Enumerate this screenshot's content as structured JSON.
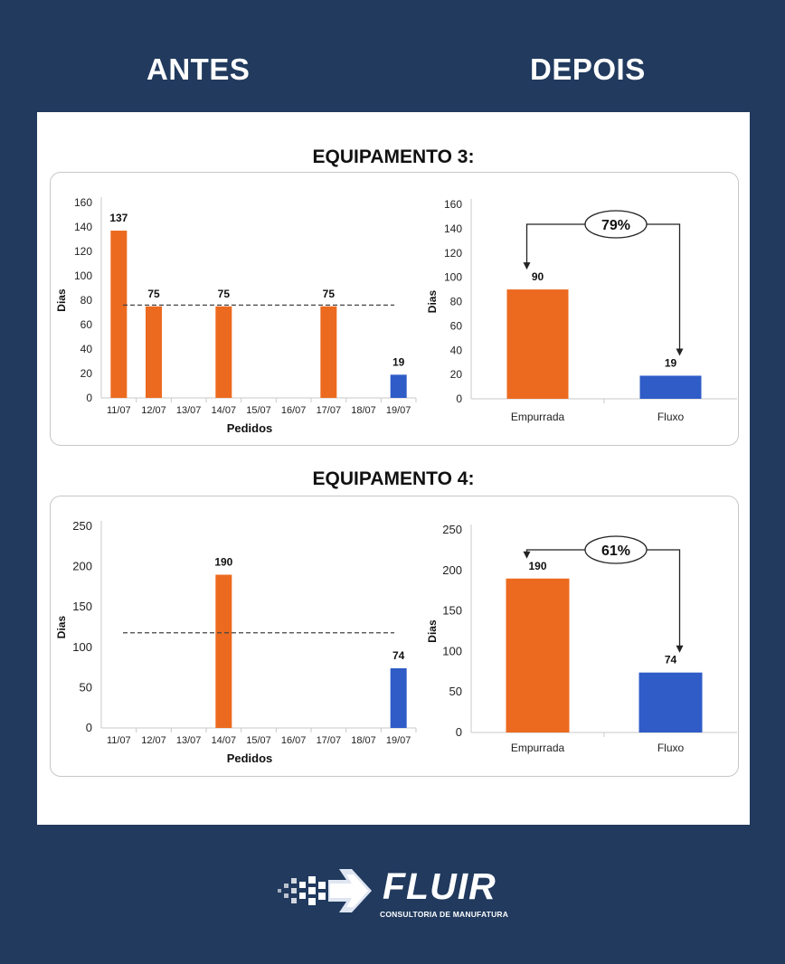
{
  "headings": {
    "before": "ANTES",
    "after": "DEPOIS"
  },
  "sections": [
    {
      "title": "EQUIPAMENTO 3:"
    },
    {
      "title": "EQUIPAMENTO 4:"
    }
  ],
  "colors": {
    "background": "#213a5e",
    "orange": "#ec6a1f",
    "blue": "#2f5cc7"
  },
  "logo": {
    "name": "FLUIR",
    "subtitle": "CONSULTORIA DE MANUFATURA"
  },
  "chart_data": [
    {
      "id": "eq3-before",
      "type": "bar",
      "categories": [
        "11/07",
        "12/07",
        "13/07",
        "14/07",
        "15/07",
        "16/07",
        "17/07",
        "18/07",
        "19/07"
      ],
      "values": [
        137,
        75,
        null,
        75,
        null,
        null,
        75,
        null,
        19
      ],
      "bar_colors": [
        "orange",
        "orange",
        null,
        "orange",
        null,
        null,
        "orange",
        null,
        "blue"
      ],
      "data_labels": [
        "137",
        "75",
        "",
        "75",
        "",
        "",
        "75",
        "",
        "19"
      ],
      "xlabel": "Pedidos",
      "ylabel": "Dias",
      "ylim": [
        0,
        160
      ],
      "yticks": [
        0,
        20,
        40,
        60,
        80,
        100,
        120,
        140,
        160
      ],
      "reference_line": 76,
      "grid": false
    },
    {
      "id": "eq3-after",
      "type": "bar",
      "categories": [
        "Empurrada",
        "Fluxo"
      ],
      "values": [
        90,
        19
      ],
      "bar_colors": [
        "orange",
        "blue"
      ],
      "data_labels": [
        "90",
        "19"
      ],
      "ylabel": "Dias",
      "ylim": [
        0,
        160
      ],
      "yticks": [
        0,
        20,
        40,
        60,
        80,
        100,
        120,
        140,
        160
      ],
      "reduction_label": "79%",
      "grid": false
    },
    {
      "id": "eq4-before",
      "type": "bar",
      "categories": [
        "11/07",
        "12/07",
        "13/07",
        "14/07",
        "15/07",
        "16/07",
        "17/07",
        "18/07",
        "19/07"
      ],
      "values": [
        null,
        null,
        null,
        190,
        null,
        null,
        null,
        null,
        74
      ],
      "bar_colors": [
        null,
        null,
        null,
        "orange",
        null,
        null,
        null,
        null,
        "blue"
      ],
      "data_labels": [
        "",
        "",
        "",
        "190",
        "",
        "",
        "",
        "",
        "74"
      ],
      "xlabel": "Pedidos",
      "ylabel": "Dias",
      "ylim": [
        0,
        250
      ],
      "yticks": [
        0,
        50,
        100,
        150,
        200,
        250
      ],
      "reference_line": 118,
      "grid": false
    },
    {
      "id": "eq4-after",
      "type": "bar",
      "categories": [
        "Empurrada",
        "Fluxo"
      ],
      "values": [
        190,
        74
      ],
      "bar_colors": [
        "orange",
        "blue"
      ],
      "data_labels": [
        "190",
        "74"
      ],
      "ylabel": "Dias",
      "ylim": [
        0,
        250
      ],
      "yticks": [
        0,
        50,
        100,
        150,
        200,
        250
      ],
      "reduction_label": "61%",
      "grid": false
    }
  ]
}
